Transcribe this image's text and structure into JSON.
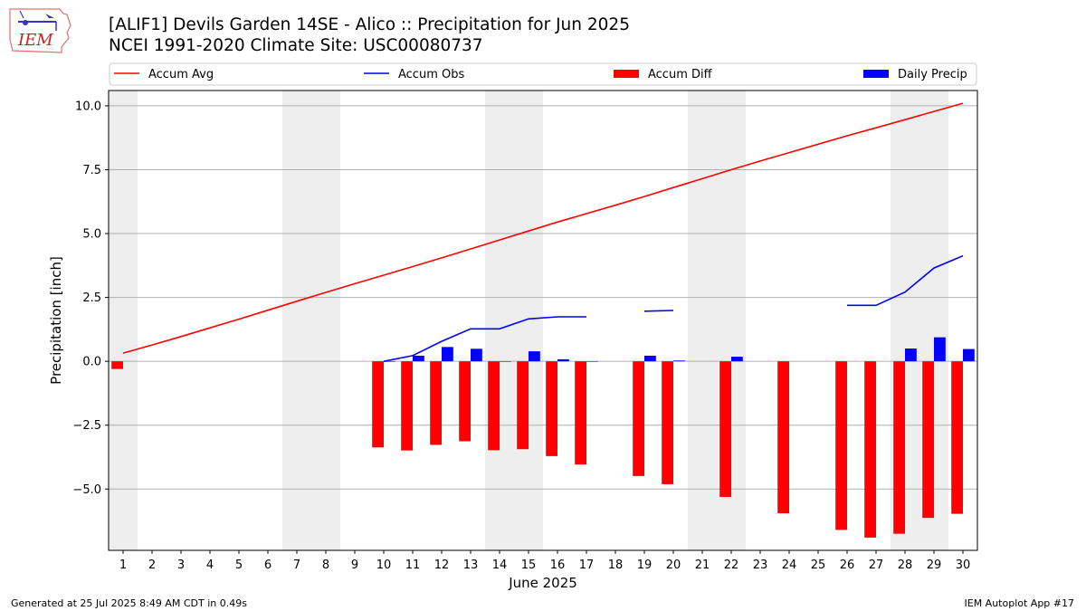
{
  "header": {
    "title_line1": "[ALIF1] Devils Garden 14SE - Alico :: Precipitation for Jun 2025",
    "title_line2": "NCEI 1991-2020 Climate Site: USC00080737",
    "logo_text": "IEM"
  },
  "footer": {
    "generated": "Generated at 25 Jul 2025 8:49 AM CDT in 0.49s",
    "app": "IEM Autoplot App #17"
  },
  "colors": {
    "avg": "#ff0000",
    "obs": "#0000ff",
    "diff": "#ff0000",
    "daily": "#0000ff",
    "weekend_shade": "#eeeeee",
    "grid": "#b0b0b0"
  },
  "chart_data": {
    "type": "bar",
    "title": "[ALIF1] Devils Garden 14SE - Alico :: Precipitation for Jun 2025",
    "subtitle": "NCEI 1991-2020 Climate Site: USC00080737",
    "xlabel": "June 2025",
    "ylabel": "Precipitation [inch]",
    "ylim": [
      -7.4,
      10.6
    ],
    "xlim": [
      0.5,
      30.5
    ],
    "yticks": [
      10.0,
      7.5,
      5.0,
      2.5,
      0.0,
      -2.5,
      -5.0
    ],
    "ytick_labels": [
      "10.0",
      "7.5",
      "5.0",
      "2.5",
      "0.0",
      "−2.5",
      "−5.0"
    ],
    "x": [
      1,
      2,
      3,
      4,
      5,
      6,
      7,
      8,
      9,
      10,
      11,
      12,
      13,
      14,
      15,
      16,
      17,
      18,
      19,
      20,
      21,
      22,
      23,
      24,
      25,
      26,
      27,
      28,
      29,
      30
    ],
    "xtick_labels": [
      "1",
      "2",
      "3",
      "4",
      "5",
      "6",
      "7",
      "8",
      "9",
      "10",
      "11",
      "12",
      "13",
      "14",
      "15",
      "16",
      "17",
      "18",
      "19",
      "20",
      "21",
      "22",
      "23",
      "24",
      "25",
      "26",
      "27",
      "28",
      "29",
      "30"
    ],
    "weekend_days": [
      1,
      7,
      8,
      14,
      15,
      21,
      22,
      28,
      29
    ],
    "grid": true,
    "legend_placement": "top, above plot",
    "legend": [
      {
        "label": "Accum Avg",
        "kind": "line",
        "color": "#ff0000"
      },
      {
        "label": "Accum Obs",
        "kind": "line",
        "color": "#0000ff"
      },
      {
        "label": "Accum Diff",
        "kind": "bar",
        "color": "#ff0000"
      },
      {
        "label": "Daily Precip",
        "kind": "bar",
        "color": "#0000ff"
      }
    ],
    "series": [
      {
        "name": "Accum Avg",
        "type": "line",
        "values": [
          0.32,
          0.64,
          0.97,
          1.31,
          1.65,
          2.0,
          2.35,
          2.7,
          3.04,
          3.37,
          3.71,
          4.05,
          4.4,
          4.75,
          5.1,
          5.45,
          5.78,
          6.11,
          6.45,
          6.8,
          7.15,
          7.5,
          7.84,
          8.17,
          8.5,
          8.83,
          9.14,
          9.46,
          9.78,
          10.1
        ]
      },
      {
        "name": "Accum Obs",
        "type": "line",
        "values": [
          null,
          null,
          null,
          null,
          null,
          null,
          null,
          null,
          null,
          0.0,
          0.22,
          0.78,
          1.27,
          1.27,
          1.66,
          1.74,
          1.74,
          null,
          1.96,
          1.99,
          null,
          null,
          null,
          null,
          null,
          2.19,
          2.19,
          2.71,
          3.65,
          4.13
        ]
      },
      {
        "name": "Accum Diff",
        "type": "bar",
        "values": [
          -0.3,
          null,
          null,
          null,
          null,
          null,
          null,
          null,
          null,
          -3.37,
          -3.49,
          -3.27,
          -3.13,
          -3.48,
          -3.44,
          -3.71,
          -4.04,
          null,
          -4.49,
          -4.81,
          null,
          -5.31,
          null,
          -5.95,
          null,
          -6.6,
          -6.9,
          -6.75,
          -6.13,
          -5.97
        ]
      },
      {
        "name": "Daily Precip",
        "type": "bar",
        "values": [
          null,
          null,
          null,
          null,
          null,
          null,
          null,
          null,
          null,
          0.0,
          0.22,
          0.56,
          0.49,
          0.0,
          0.39,
          0.08,
          0.0,
          null,
          0.22,
          0.03,
          null,
          0.18,
          null,
          null,
          null,
          null,
          null,
          0.5,
          0.94,
          0.48
        ]
      }
    ]
  }
}
